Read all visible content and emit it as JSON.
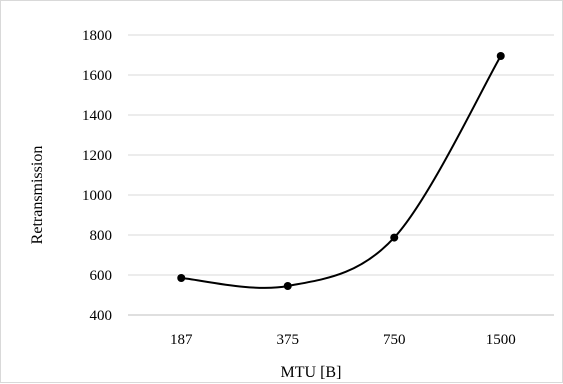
{
  "chart_data": {
    "type": "line",
    "title": "",
    "xlabel": "MTU [B]",
    "ylabel": "Retransmission",
    "categories": [
      "187",
      "375",
      "750",
      "1500"
    ],
    "series": [
      {
        "values": [
          585,
          545,
          787,
          1695
        ]
      }
    ],
    "ylim": [
      400,
      1800
    ],
    "yticks": [
      400,
      600,
      800,
      1000,
      1200,
      1400,
      1600,
      1800
    ],
    "grid": "horizontal",
    "smoothed": true,
    "markers": "circle",
    "line_color": "#000000",
    "grid_color": "#d9d9d9",
    "legend": "none"
  }
}
